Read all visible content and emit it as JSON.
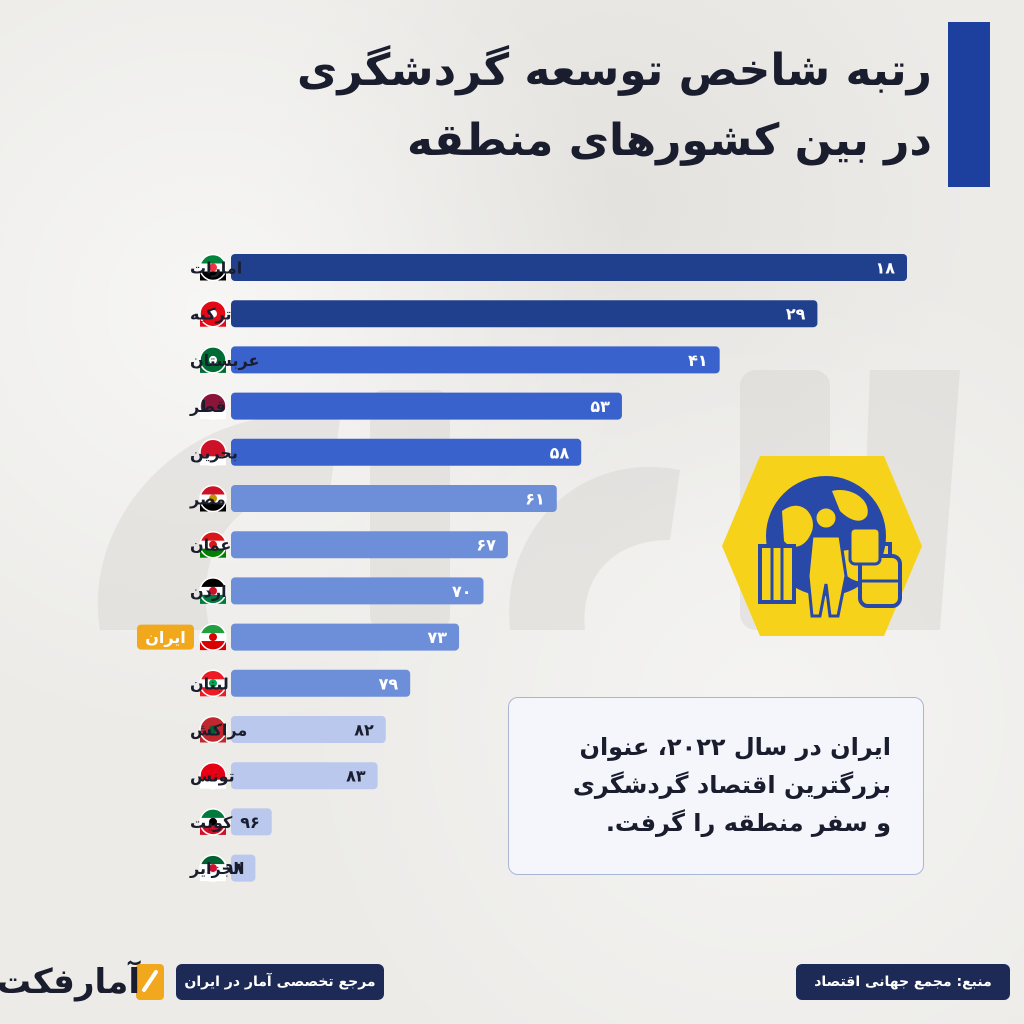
{
  "title": {
    "line1": "رتبه شاخص توسعه گردشگری",
    "line2": "در بین کشورهای منطقه"
  },
  "colors": {
    "accent": "#1d3f9e",
    "bar_dark": "#203f8c",
    "bar_mid": "#3a62cc",
    "bar_light": "#6d8fd9",
    "bar_pale": "#b9c8ec",
    "highlight": "#f2a81d",
    "footer_bg": "#1d2a56",
    "icon_yellow": "#f7d21b",
    "icon_blue": "#2849a8"
  },
  "chart_data": {
    "type": "bar",
    "orientation": "horizontal",
    "categories": [
      "امارات",
      "ترکیه",
      "عربستان",
      "قطر",
      "بحرین",
      "مصر",
      "عمان",
      "اردن",
      "ایران",
      "لبنان",
      "مراکش",
      "تونس",
      "کویت",
      "الجزایر"
    ],
    "values": [
      18,
      29,
      41,
      53,
      58,
      61,
      67,
      70,
      73,
      79,
      82,
      83,
      96,
      98
    ],
    "value_labels": [
      "۱۸",
      "۲۹",
      "۴۱",
      "۵۳",
      "۵۸",
      "۶۱",
      "۶۷",
      "۷۰",
      "۷۳",
      "۷۹",
      "۸۲",
      "۸۳",
      "۹۶",
      "۹۸"
    ],
    "highlighted_category": "ایران",
    "xlabel": "",
    "ylabel": "",
    "grid": false,
    "legend": "none"
  },
  "callout": {
    "line1": "ایران در سال ۲۰۲۲، عنوان",
    "line2": "بزرگترین اقتصاد گردشگری",
    "line3": "و سفر منطقه را گرفت."
  },
  "footer": {
    "tagline": "مرجع تخصصی آمار در ایران",
    "source": "منبع: مجمع جهانی اقتصاد",
    "logo_text": "آمارفکت"
  },
  "icons": {
    "travel": "traveler-globe-icon",
    "logo": "amarfact-logo-icon"
  }
}
